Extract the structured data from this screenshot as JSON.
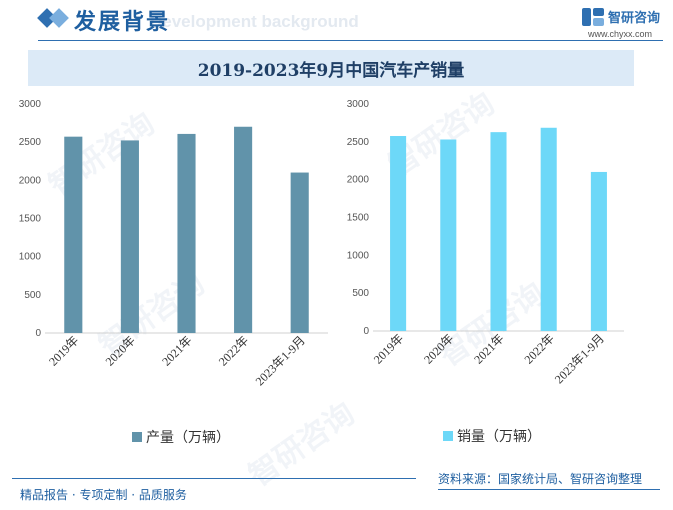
{
  "header": {
    "title": "发展背景",
    "subtitle": "Development background"
  },
  "brand": {
    "name": "智研咨询",
    "url": "www.chyxx.com",
    "logo_icon": "zhiyan-logo-icon"
  },
  "watermark": {
    "text": "智研咨询"
  },
  "colors": {
    "production": "#6193aa",
    "sales": "#6dd8f8",
    "accent": "#2e6fb1",
    "title_band": "#dceaf7"
  },
  "chart_data": [
    {
      "type": "bar",
      "title": "2019-2023年9月中国汽车产销量",
      "categories": [
        "2019年",
        "2020年",
        "2021年",
        "2022年",
        "2023年1-9月"
      ],
      "series": [
        {
          "name": "产量（万辆）",
          "values": [
            2572,
            2523,
            2608,
            2702,
            2102
          ]
        }
      ],
      "ylim": [
        0,
        3000
      ],
      "yticks": [
        "0",
        "500",
        "1000",
        "1500",
        "2000",
        "2500",
        "3000"
      ],
      "legend": "bottom",
      "grid": false
    },
    {
      "type": "bar",
      "categories": [
        "2019年",
        "2020年",
        "2021年",
        "2022年",
        "2023年1-9月"
      ],
      "series": [
        {
          "name": "销量（万辆）",
          "values": [
            2577,
            2531,
            2628,
            2686,
            2102
          ]
        }
      ],
      "ylim": [
        0,
        3000
      ],
      "yticks": [
        "0",
        "500",
        "1000",
        "1500",
        "2000",
        "2500",
        "3000"
      ],
      "legend": "bottom",
      "grid": false
    }
  ],
  "source": "资料来源：国家统计局、智研咨询整理",
  "footer": "精品报告 · 专项定制 · 品质服务"
}
